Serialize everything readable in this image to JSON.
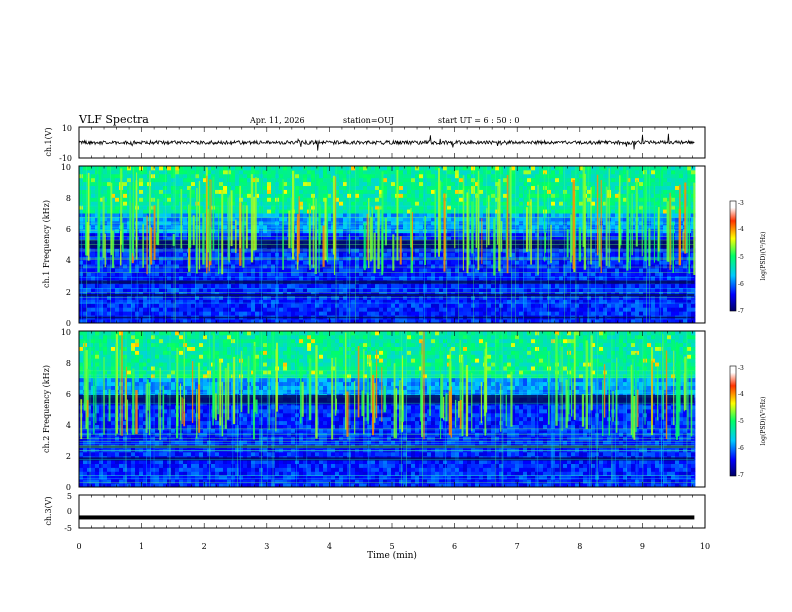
{
  "header": {
    "title": "VLF Spectra",
    "date": "Apr. 11, 2026",
    "station": "station=OUJ",
    "start": "start  UT =   6  : 50 : 0"
  },
  "colors": {
    "spectrogram_low": "#000a8c",
    "spectrogram_high": "#d40000",
    "waveform": "#000000"
  },
  "chart_data": [
    {
      "type": "line",
      "name": "ch1-waveform",
      "ylabel": "ch.1(V)",
      "ylim": [
        -10,
        10
      ],
      "yticks": [
        "10",
        "-10"
      ],
      "xlim": [
        0,
        10
      ],
      "baseline": 0,
      "x_end": 9.83
    },
    {
      "type": "heatmap",
      "name": "ch1-spectrogram",
      "ylabel": "ch.1\nFrequency  (kHz)",
      "ylim": [
        0,
        10
      ],
      "yticks": [
        "0",
        "2",
        "4",
        "6",
        "8",
        "10"
      ],
      "xlim": [
        0,
        10
      ],
      "x_end": 9.83,
      "dark_bands_khz": [
        [
          4.75,
          5.3
        ],
        [
          2.5,
          2.7
        ],
        [
          1.7,
          1.85
        ],
        [
          0.3,
          0.4
        ]
      ],
      "colorbar": {
        "label": "log(PSD)(V²/Hz)",
        "range": [
          -7,
          -3
        ],
        "ticks": [
          "-3",
          "-4",
          "-5",
          "-6",
          "-7"
        ]
      }
    },
    {
      "type": "heatmap",
      "name": "ch2-spectrogram",
      "ylabel": "ch.2\nFrequency  (kHz)",
      "ylim": [
        0,
        10
      ],
      "yticks": [
        "0",
        "2",
        "4",
        "6",
        "8",
        "10"
      ],
      "xlim": [
        0,
        10
      ],
      "x_end": 9.83,
      "dark_bands_khz": [
        [
          5.3,
          5.9
        ],
        [
          1.7,
          1.9
        ],
        [
          2.5,
          2.65
        ]
      ],
      "colorbar": {
        "label": "log(PSD)(V²/Hz)",
        "range": [
          -7,
          -3
        ],
        "ticks": [
          "-3",
          "-4",
          "-5",
          "-6",
          "-7"
        ]
      }
    },
    {
      "type": "line",
      "name": "ch3-waveform",
      "ylabel": "ch.3(V)",
      "ylim": [
        -5,
        5
      ],
      "yticks": [
        "5",
        "0",
        "-5"
      ],
      "xlim": [
        0,
        10
      ],
      "baseline": -1.8,
      "x_end": 9.83
    }
  ],
  "xaxis": {
    "label": "Time  (min)",
    "ticks": [
      "0",
      "1",
      "2",
      "3",
      "4",
      "5",
      "6",
      "7",
      "8",
      "9",
      "10"
    ]
  }
}
